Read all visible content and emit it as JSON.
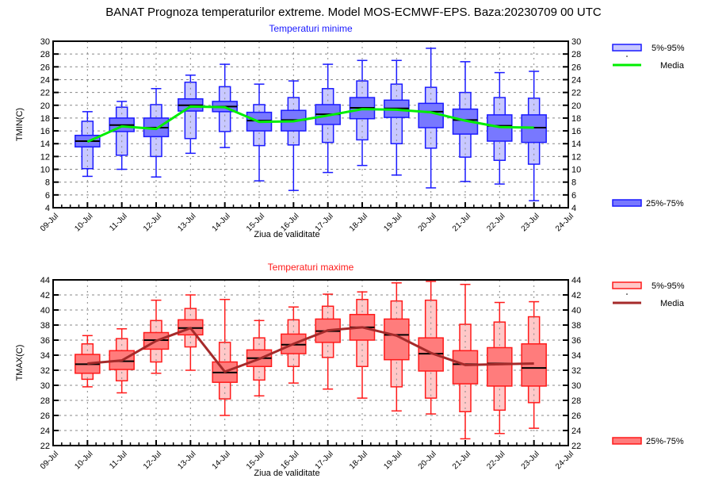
{
  "title": "BANAT  Prognoza temperaturilor extreme.  Model MOS-ECMWF-EPS. Baza:20230709 00 UTC",
  "chart_data": [
    {
      "id": "tmin",
      "type": "box",
      "title": "Temperaturi minime",
      "title_color": "#1a1aff",
      "xlabel": "Ziua de validitate",
      "ylabel": "TMIN(C)",
      "ylim": [
        4,
        30
      ],
      "yticks": [
        4,
        6,
        8,
        10,
        12,
        14,
        16,
        18,
        20,
        22,
        24,
        26,
        28,
        30
      ],
      "xtick_labels": [
        "09-Jul",
        "10-Jul",
        "11-Jul",
        "12-Jul",
        "13-Jul",
        "14-Jul",
        "15-Jul",
        "16-Jul",
        "17-Jul",
        "18-Jul",
        "19-Jul",
        "20-Jul",
        "21-Jul",
        "22-Jul",
        "23-Jul",
        "24-Jul"
      ],
      "grid": true,
      "colors": {
        "outer_fill": "#c8c8ff",
        "inner_fill": "#7878ff",
        "stroke": "#1a1aff",
        "mean_line": "#00ee00",
        "median": "#000000"
      },
      "legend": {
        "placement": "right",
        "items": [
          "5%-95%",
          "Media",
          "25%-75%"
        ]
      },
      "categories": [
        "10-Jul",
        "11-Jul",
        "12-Jul",
        "13-Jul",
        "14-Jul",
        "15-Jul",
        "16-Jul",
        "17-Jul",
        "18-Jul",
        "19-Jul",
        "20-Jul",
        "21-Jul",
        "22-Jul",
        "23-Jul"
      ],
      "series": {
        "min": [
          8.9,
          10.0,
          8.8,
          12.5,
          13.4,
          8.2,
          6.7,
          9.5,
          10.6,
          9.1,
          7.1,
          8.1,
          7.7,
          5.1
        ],
        "p5": [
          10.1,
          12.2,
          12.0,
          14.8,
          15.9,
          13.7,
          13.8,
          14.2,
          14.6,
          14.0,
          13.3,
          11.9,
          11.4,
          10.8
        ],
        "p25": [
          13.5,
          15.9,
          15.1,
          19.1,
          19.0,
          16.0,
          16.0,
          17.0,
          17.9,
          18.1,
          16.5,
          15.5,
          14.4,
          14.2
        ],
        "median": [
          14.4,
          16.9,
          16.5,
          20.0,
          19.8,
          17.6,
          17.7,
          18.6,
          19.6,
          19.5,
          19.0,
          17.7,
          16.8,
          16.5
        ],
        "p75": [
          15.3,
          18.0,
          18.0,
          21.0,
          20.6,
          18.9,
          19.2,
          20.1,
          21.2,
          20.8,
          20.3,
          19.4,
          18.5,
          18.5
        ],
        "p95": [
          17.5,
          19.7,
          20.1,
          23.6,
          22.9,
          20.1,
          21.2,
          22.6,
          23.8,
          23.3,
          22.8,
          22.0,
          21.2,
          21.1
        ],
        "max": [
          19.0,
          20.6,
          22.6,
          24.7,
          26.4,
          23.3,
          23.8,
          26.4,
          27.0,
          27.0,
          28.9,
          26.8,
          25.1,
          25.3
        ],
        "mean": [
          14.3,
          16.7,
          16.3,
          19.8,
          19.7,
          17.4,
          17.5,
          18.4,
          19.4,
          19.3,
          18.9,
          17.6,
          16.6,
          16.5
        ]
      }
    },
    {
      "id": "tmax",
      "type": "box",
      "title": "Temperaturi maxime",
      "title_color": "#ff1a1a",
      "xlabel": "Ziua de validitate",
      "ylabel": "TMAX(C)",
      "ylim": [
        22,
        44
      ],
      "yticks": [
        22,
        24,
        26,
        28,
        30,
        32,
        34,
        36,
        38,
        40,
        42,
        44
      ],
      "xtick_labels": [
        "09-Jul",
        "10-Jul",
        "11-Jul",
        "12-Jul",
        "13-Jul",
        "14-Jul",
        "15-Jul",
        "16-Jul",
        "17-Jul",
        "18-Jul",
        "19-Jul",
        "20-Jul",
        "21-Jul",
        "22-Jul",
        "23-Jul",
        "24-Jul"
      ],
      "grid": true,
      "colors": {
        "outer_fill": "#ffc8c8",
        "inner_fill": "#ff7c7c",
        "stroke": "#ff1a1a",
        "mean_line": "#a52a2a",
        "median": "#000000"
      },
      "legend": {
        "placement": "right",
        "items": [
          "5%-95%",
          "Media",
          "25%-75%"
        ]
      },
      "categories": [
        "10-Jul",
        "11-Jul",
        "12-Jul",
        "13-Jul",
        "14-Jul",
        "15-Jul",
        "16-Jul",
        "17-Jul",
        "18-Jul",
        "19-Jul",
        "20-Jul",
        "21-Jul",
        "22-Jul",
        "23-Jul"
      ],
      "series": {
        "min": [
          29.8,
          29.0,
          31.6,
          32.0,
          26.0,
          28.6,
          30.3,
          29.5,
          28.3,
          26.6,
          26.2,
          22.9,
          23.6,
          24.3
        ],
        "p5": [
          30.8,
          30.6,
          33.1,
          35.1,
          28.2,
          30.7,
          32.5,
          33.7,
          32.5,
          29.8,
          28.3,
          26.5,
          26.7,
          27.7
        ],
        "p25": [
          31.6,
          32.1,
          34.8,
          36.7,
          30.4,
          32.5,
          34.2,
          35.7,
          36.0,
          33.4,
          31.9,
          30.2,
          29.9,
          29.9
        ],
        "median": [
          32.8,
          33.2,
          36.0,
          37.6,
          31.7,
          33.6,
          35.4,
          37.2,
          37.7,
          36.7,
          34.2,
          32.8,
          32.9,
          32.3
        ],
        "p75": [
          34.1,
          34.6,
          37.0,
          38.7,
          33.1,
          34.7,
          36.8,
          38.8,
          39.4,
          38.8,
          36.3,
          34.6,
          35.0,
          35.5
        ],
        "p95": [
          35.5,
          36.2,
          38.6,
          40.2,
          35.7,
          36.3,
          38.7,
          40.5,
          41.4,
          41.2,
          41.3,
          38.1,
          38.4,
          39.1
        ],
        "max": [
          36.6,
          37.5,
          41.3,
          42.0,
          41.4,
          38.6,
          40.4,
          42.1,
          42.4,
          43.6,
          43.8,
          43.4,
          41.0,
          41.1
        ],
        "mean": [
          32.9,
          33.3,
          35.9,
          37.6,
          31.8,
          33.5,
          35.5,
          37.3,
          37.7,
          36.6,
          34.3,
          32.7,
          32.8,
          32.9
        ]
      }
    }
  ]
}
